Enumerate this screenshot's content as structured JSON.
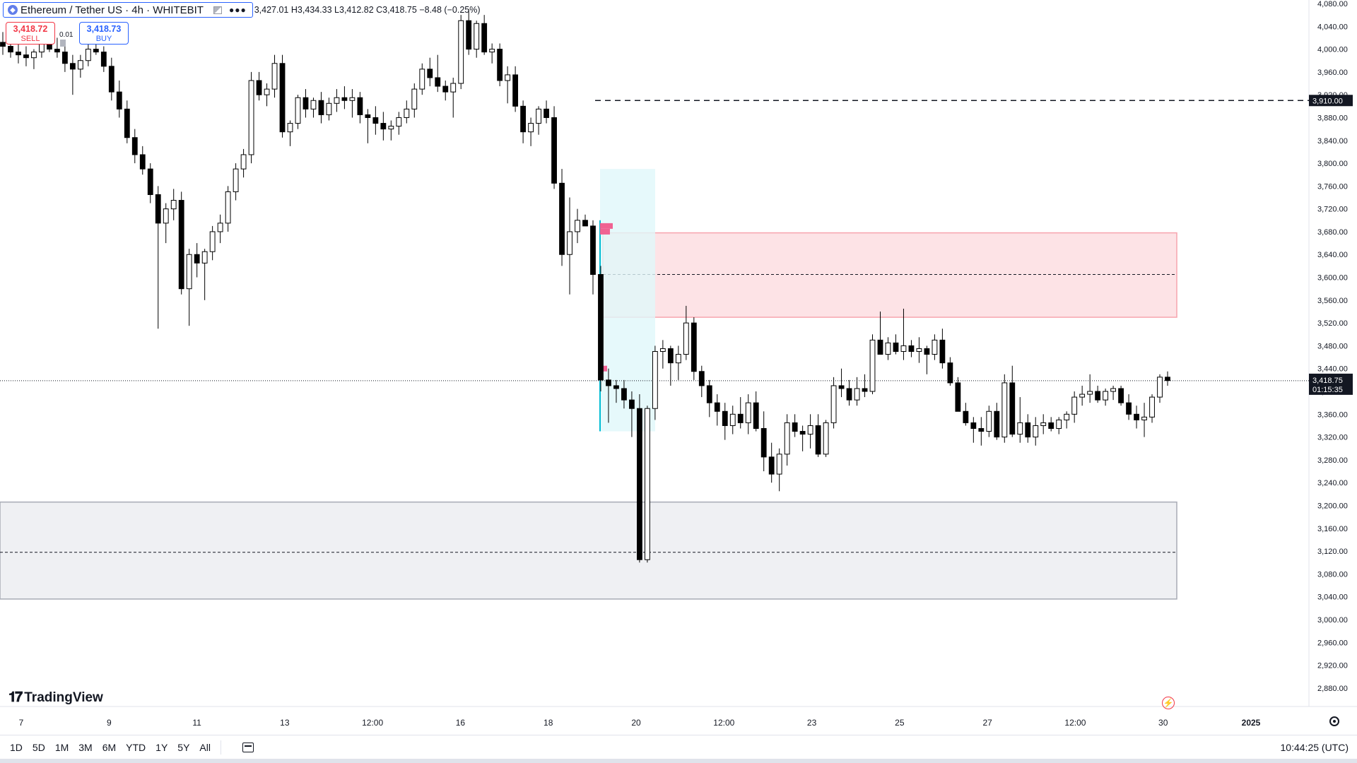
{
  "header": {
    "symbol_title": "Ethereum / Tether US · 4h · WHITEBIT",
    "icon": "ethereum-logo-icon",
    "ohlc": {
      "o": "3,427.01",
      "h": "3,434.33",
      "l": "3,412.82",
      "c": "3,418.75",
      "change": "−8.48 (−0.25%)"
    }
  },
  "trade": {
    "sell_price": "3,418.72",
    "sell_label": "SELL",
    "buy_price": "3,418.73",
    "buy_label": "BUY",
    "spread": "0.01"
  },
  "branding": {
    "name": "TradingView"
  },
  "bottom_bar": {
    "ranges": [
      "1D",
      "5D",
      "1M",
      "3M",
      "6M",
      "YTD",
      "1Y",
      "5Y",
      "All"
    ],
    "clock": "10:44:25 (UTC)"
  },
  "colors": {
    "up_body": "#ffffff",
    "down_body": "#000000",
    "wick": "#000000",
    "supply_zone": "#f23645",
    "demand_zone": "#9598a1",
    "volume_profile": "#00bcd4"
  },
  "chart_data": {
    "type": "candlestick",
    "title": "",
    "y_range": [
      2860,
      4080
    ],
    "y_ticks": [
      "4,080.00",
      "4,040.00",
      "4,000.00",
      "3,960.00",
      "3,920.00",
      "3,880.00",
      "3,840.00",
      "3,800.00",
      "3,760.00",
      "3,720.00",
      "3,680.00",
      "3,640.00",
      "3,600.00",
      "3,560.00",
      "3,520.00",
      "3,480.00",
      "3,440.00",
      "3,400.00",
      "3,360.00",
      "3,320.00",
      "3,280.00",
      "3,240.00",
      "3,200.00",
      "3,160.00",
      "3,120.00",
      "3,080.00",
      "3,040.00",
      "3,000.00",
      "2,960.00",
      "2,920.00",
      "2,880.00"
    ],
    "x_ticks": [
      "7",
      "9",
      "11",
      "13",
      "12:00",
      "16",
      "18",
      "20",
      "12:00",
      "23",
      "25",
      "27",
      "12:00",
      "30",
      "2025"
    ],
    "last_price_label": "3,418.75",
    "countdown": "01:15:35",
    "marked_level_label": "3,910.00",
    "zones": [
      {
        "name": "supply-zone",
        "top": 3678,
        "bottom": 3530,
        "mid": 3605
      },
      {
        "name": "demand-zone",
        "top": 3206,
        "bottom": 3036,
        "mid": 3118
      }
    ],
    "candles": [
      [
        4012,
        4030,
        3990,
        4005
      ],
      [
        4005,
        4020,
        3985,
        3995
      ],
      [
        3995,
        4010,
        3975,
        3990
      ],
      [
        3990,
        4005,
        3970,
        3985
      ],
      [
        3985,
        4000,
        3965,
        3995
      ],
      [
        3995,
        4020,
        3985,
        4010
      ],
      [
        4010,
        4030,
        3995,
        4000
      ],
      [
        4000,
        4020,
        3985,
        3995
      ],
      [
        3995,
        4010,
        3960,
        3975
      ],
      [
        3975,
        3990,
        3920,
        3965
      ],
      [
        3965,
        3990,
        3950,
        3980
      ],
      [
        3980,
        4010,
        3970,
        4000
      ],
      [
        4000,
        4020,
        3990,
        3995
      ],
      [
        3995,
        4005,
        3960,
        3970
      ],
      [
        3970,
        3985,
        3910,
        3925
      ],
      [
        3925,
        3945,
        3880,
        3895
      ],
      [
        3895,
        3910,
        3835,
        3845
      ],
      [
        3845,
        3860,
        3800,
        3815
      ],
      [
        3815,
        3830,
        3780,
        3790
      ],
      [
        3790,
        3800,
        3730,
        3745
      ],
      [
        3745,
        3760,
        3510,
        3695
      ],
      [
        3695,
        3730,
        3660,
        3720
      ],
      [
        3720,
        3755,
        3700,
        3735
      ],
      [
        3735,
        3750,
        3570,
        3580
      ],
      [
        3580,
        3650,
        3515,
        3640
      ],
      [
        3640,
        3660,
        3600,
        3625
      ],
      [
        3625,
        3650,
        3560,
        3645
      ],
      [
        3645,
        3690,
        3630,
        3680
      ],
      [
        3680,
        3710,
        3660,
        3695
      ],
      [
        3695,
        3760,
        3680,
        3750
      ],
      [
        3750,
        3800,
        3735,
        3790
      ],
      [
        3790,
        3825,
        3775,
        3815
      ],
      [
        3815,
        3960,
        3800,
        3945
      ],
      [
        3945,
        3960,
        3910,
        3920
      ],
      [
        3920,
        3940,
        3900,
        3930
      ],
      [
        3930,
        3990,
        3915,
        3975
      ],
      [
        3975,
        3990,
        3845,
        3855
      ],
      [
        3855,
        3875,
        3830,
        3870
      ],
      [
        3870,
        3920,
        3860,
        3915
      ],
      [
        3915,
        3930,
        3880,
        3895
      ],
      [
        3895,
        3915,
        3880,
        3910
      ],
      [
        3910,
        3925,
        3870,
        3885
      ],
      [
        3885,
        3915,
        3875,
        3905
      ],
      [
        3905,
        3930,
        3890,
        3915
      ],
      [
        3915,
        3935,
        3895,
        3910
      ],
      [
        3910,
        3930,
        3880,
        3915
      ],
      [
        3915,
        3925,
        3870,
        3885
      ],
      [
        3885,
        3895,
        3835,
        3880
      ],
      [
        3880,
        3900,
        3850,
        3870
      ],
      [
        3870,
        3890,
        3840,
        3860
      ],
      [
        3860,
        3875,
        3840,
        3865
      ],
      [
        3865,
        3890,
        3850,
        3880
      ],
      [
        3880,
        3910,
        3870,
        3895
      ],
      [
        3895,
        3940,
        3880,
        3930
      ],
      [
        3930,
        3975,
        3920,
        3965
      ],
      [
        3965,
        3985,
        3935,
        3950
      ],
      [
        3950,
        3990,
        3925,
        3935
      ],
      [
        3935,
        3945,
        3910,
        3925
      ],
      [
        3925,
        3950,
        3880,
        3940
      ],
      [
        3940,
        4060,
        3930,
        4050
      ],
      [
        4050,
        4070,
        3990,
        4000
      ],
      [
        4000,
        4050,
        3985,
        4045
      ],
      [
        4045,
        4060,
        3990,
        3995
      ],
      [
        3995,
        4010,
        3975,
        4000
      ],
      [
        4000,
        4010,
        3935,
        3945
      ],
      [
        3945,
        3970,
        3905,
        3955
      ],
      [
        3955,
        3970,
        3890,
        3900
      ],
      [
        3900,
        3910,
        3835,
        3855
      ],
      [
        3855,
        3880,
        3830,
        3870
      ],
      [
        3870,
        3900,
        3850,
        3895
      ],
      [
        3895,
        3910,
        3870,
        3880
      ],
      [
        3880,
        3900,
        3755,
        3765
      ],
      [
        3765,
        3790,
        3620,
        3640
      ],
      [
        3640,
        3740,
        3570,
        3680
      ],
      [
        3680,
        3720,
        3660,
        3700
      ],
      [
        3700,
        3710,
        3690,
        3690
      ],
      [
        3690,
        3700,
        3570,
        3605
      ],
      [
        3605,
        3620,
        3400,
        3420
      ],
      [
        3420,
        3440,
        3345,
        3410
      ],
      [
        3410,
        3420,
        3380,
        3405
      ],
      [
        3405,
        3420,
        3370,
        3385
      ],
      [
        3385,
        3400,
        3320,
        3370
      ],
      [
        3370,
        3395,
        3100,
        3105
      ],
      [
        3105,
        3375,
        3100,
        3370
      ],
      [
        3370,
        3480,
        3350,
        3470
      ],
      [
        3470,
        3490,
        3440,
        3475
      ],
      [
        3475,
        3480,
        3410,
        3450
      ],
      [
        3450,
        3480,
        3420,
        3465
      ],
      [
        3465,
        3550,
        3455,
        3520
      ],
      [
        3520,
        3530,
        3420,
        3435
      ],
      [
        3435,
        3445,
        3390,
        3410
      ],
      [
        3410,
        3420,
        3355,
        3380
      ],
      [
        3380,
        3395,
        3340,
        3365
      ],
      [
        3365,
        3380,
        3315,
        3340
      ],
      [
        3340,
        3375,
        3325,
        3360
      ],
      [
        3360,
        3390,
        3335,
        3345
      ],
      [
        3345,
        3395,
        3325,
        3380
      ],
      [
        3380,
        3400,
        3330,
        3335
      ],
      [
        3335,
        3365,
        3260,
        3285
      ],
      [
        3285,
        3310,
        3240,
        3255
      ],
      [
        3255,
        3300,
        3225,
        3290
      ],
      [
        3290,
        3360,
        3270,
        3345
      ],
      [
        3345,
        3360,
        3320,
        3330
      ],
      [
        3330,
        3340,
        3295,
        3325
      ],
      [
        3325,
        3360,
        3300,
        3340
      ],
      [
        3340,
        3360,
        3285,
        3290
      ],
      [
        3290,
        3350,
        3285,
        3345
      ],
      [
        3345,
        3425,
        3335,
        3410
      ],
      [
        3410,
        3440,
        3390,
        3405
      ],
      [
        3405,
        3420,
        3375,
        3385
      ],
      [
        3385,
        3425,
        3375,
        3405
      ],
      [
        3405,
        3430,
        3390,
        3400
      ],
      [
        3400,
        3500,
        3395,
        3490
      ],
      [
        3490,
        3540,
        3465,
        3465
      ],
      [
        3465,
        3495,
        3455,
        3485
      ],
      [
        3485,
        3500,
        3465,
        3470
      ],
      [
        3470,
        3545,
        3455,
        3480
      ],
      [
        3480,
        3490,
        3460,
        3470
      ],
      [
        3470,
        3495,
        3450,
        3475
      ],
      [
        3475,
        3480,
        3430,
        3465
      ],
      [
        3465,
        3500,
        3455,
        3490
      ],
      [
        3490,
        3510,
        3440,
        3450
      ],
      [
        3450,
        3460,
        3410,
        3415
      ],
      [
        3415,
        3425,
        3365,
        3365
      ],
      [
        3365,
        3380,
        3340,
        3345
      ],
      [
        3345,
        3355,
        3310,
        3335
      ],
      [
        3335,
        3355,
        3305,
        3330
      ],
      [
        3330,
        3375,
        3320,
        3365
      ],
      [
        3365,
        3380,
        3315,
        3320
      ],
      [
        3320,
        3430,
        3310,
        3415
      ],
      [
        3415,
        3445,
        3320,
        3325
      ],
      [
        3325,
        3390,
        3310,
        3345
      ],
      [
        3345,
        3360,
        3310,
        3320
      ],
      [
        3320,
        3355,
        3305,
        3340
      ],
      [
        3340,
        3360,
        3325,
        3345
      ],
      [
        3345,
        3355,
        3330,
        3335
      ],
      [
        3335,
        3355,
        3325,
        3350
      ],
      [
        3350,
        3365,
        3335,
        3360
      ],
      [
        3360,
        3400,
        3345,
        3390
      ],
      [
        3390,
        3410,
        3375,
        3395
      ],
      [
        3395,
        3430,
        3380,
        3400
      ],
      [
        3400,
        3410,
        3380,
        3385
      ],
      [
        3385,
        3405,
        3375,
        3400
      ],
      [
        3400,
        3410,
        3385,
        3405
      ],
      [
        3405,
        3410,
        3375,
        3380
      ],
      [
        3380,
        3395,
        3350,
        3360
      ],
      [
        3360,
        3375,
        3335,
        3350
      ],
      [
        3350,
        3380,
        3320,
        3355
      ],
      [
        3355,
        3395,
        3345,
        3390
      ],
      [
        3390,
        3430,
        3380,
        3425
      ],
      [
        3425,
        3435,
        3410,
        3419
      ]
    ]
  }
}
